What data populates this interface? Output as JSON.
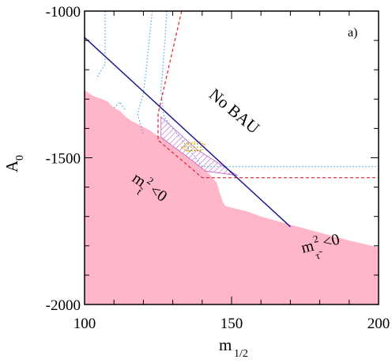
{
  "chart_data": {
    "type": "area",
    "panel_label": "a)",
    "xlabel": "m",
    "xlabel_sub": "1/2",
    "ylabel": "A",
    "ylabel_sub": "0",
    "xlim": [
      100,
      200
    ],
    "ylim": [
      -2000,
      -1000
    ],
    "x_ticks": [
      100,
      150,
      200
    ],
    "y_ticks": [
      -2000,
      -1500,
      -1000
    ],
    "grid": false,
    "colors": {
      "excluded_fill": "#ffb6c8",
      "bau_line": "#1a1a8c",
      "red_dashed": "#e0202a",
      "blue_dotted": "#5aaae0",
      "hatch": "#c060c0",
      "blob": "#c8a000",
      "bau_text": "#1a1a8c"
    },
    "regions": {
      "excluded_region": {
        "boundary": [
          [
            100,
            -1270
          ],
          [
            103,
            -1290
          ],
          [
            106,
            -1300
          ],
          [
            108,
            -1310
          ],
          [
            110,
            -1330
          ],
          [
            112,
            -1340
          ],
          [
            114,
            -1360
          ],
          [
            116,
            -1375
          ],
          [
            118,
            -1385
          ],
          [
            120,
            -1395
          ],
          [
            122,
            -1405
          ],
          [
            124,
            -1420
          ],
          [
            126,
            -1430
          ],
          [
            128,
            -1445
          ],
          [
            130,
            -1460
          ],
          [
            132,
            -1475
          ],
          [
            134,
            -1490
          ],
          [
            136,
            -1505
          ],
          [
            138,
            -1520
          ],
          [
            140,
            -1535
          ],
          [
            142,
            -1550
          ],
          [
            144,
            -1575
          ],
          [
            145,
            -1585
          ],
          [
            146,
            -1620
          ],
          [
            147,
            -1650
          ],
          [
            148,
            -1665
          ],
          [
            150,
            -1670
          ],
          [
            152,
            -1675
          ],
          [
            155,
            -1682
          ],
          [
            160,
            -1700
          ],
          [
            170,
            -1728
          ],
          [
            180,
            -1755
          ],
          [
            190,
            -1782
          ],
          [
            200,
            -1805
          ]
        ]
      },
      "hatched_region": [
        [
          126,
          -1430
        ],
        [
          130,
          -1460
        ],
        [
          134,
          -1490
        ],
        [
          138,
          -1520
        ],
        [
          141,
          -1545
        ],
        [
          152,
          -1560
        ],
        [
          138,
          -1470
        ],
        [
          126,
          -1360
        ]
      ],
      "blob_region": [
        [
          133,
          -1465
        ],
        [
          135,
          -1450
        ],
        [
          139,
          -1445
        ],
        [
          141,
          -1455
        ],
        [
          140,
          -1475
        ],
        [
          135,
          -1478
        ]
      ]
    },
    "lines": {
      "bau_boundary": [
        [
          100,
          -1090
        ],
        [
          170,
          -1735
        ]
      ],
      "red_dashed": [
        [
          133,
          -1000
        ],
        [
          125,
          -1350
        ],
        [
          125,
          -1440
        ],
        [
          140,
          -1568
        ],
        [
          200,
          -1568
        ]
      ],
      "blue_dotted_left": [
        [
          107,
          -1000
        ],
        [
          107,
          -1180
        ],
        [
          104,
          -1230
        ]
      ],
      "blue_dotted_mid": [
        [
          123,
          -1000
        ],
        [
          122,
          -1100
        ],
        [
          121,
          -1200
        ],
        [
          120,
          -1280
        ],
        [
          118,
          -1350
        ],
        [
          120,
          -1420
        ]
      ],
      "blue_dotted_right": [
        [
          128,
          -1000
        ],
        [
          127,
          -1150
        ],
        [
          126,
          -1270
        ],
        [
          127,
          -1360
        ],
        [
          140,
          -1530
        ],
        [
          200,
          -1530
        ]
      ],
      "blue_dotted_bump": [
        [
          110,
          -1330
        ],
        [
          112,
          -1310
        ],
        [
          114,
          -1340
        ]
      ]
    },
    "annotations": {
      "no_bau": "No BAU",
      "m_tilde_t": {
        "m": "m",
        "sup": "2",
        "sub": "t̃",
        "rel": "<0"
      },
      "m_tilde_tau": {
        "m": "m",
        "sup": "2",
        "sub": "τ̃",
        "rel": "<0"
      }
    }
  }
}
